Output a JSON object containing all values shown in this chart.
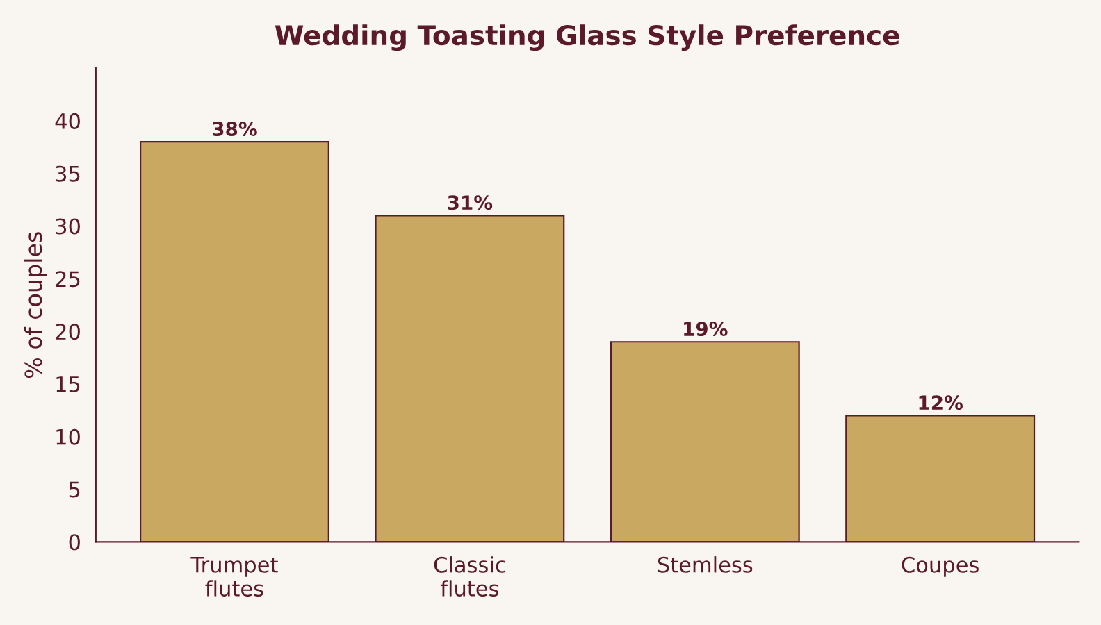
{
  "chart_data": {
    "type": "bar",
    "title": "Wedding Toasting Glass Style Preference",
    "ylabel": "% of couples",
    "categories": [
      "Trumpet\nflutes",
      "Classic\nflutes",
      "Stemless",
      "Coupes"
    ],
    "values": [
      38,
      31,
      19,
      12
    ],
    "color": "#c9a862",
    "value_labels": [
      "38%",
      "31%",
      "19%",
      "12%"
    ],
    "ylim": [
      0,
      45
    ],
    "yticks": [
      0,
      5,
      10,
      15,
      20,
      25,
      30,
      35,
      40
    ],
    "grid": false,
    "legend": false
  }
}
